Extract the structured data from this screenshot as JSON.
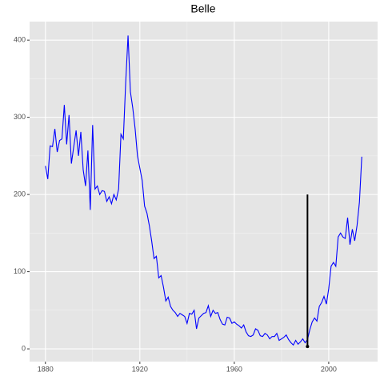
{
  "chart_data": {
    "type": "line",
    "title": "Belle",
    "x": [
      1880,
      1881,
      1882,
      1883,
      1884,
      1885,
      1886,
      1887,
      1888,
      1889,
      1890,
      1891,
      1892,
      1893,
      1894,
      1895,
      1896,
      1897,
      1898,
      1899,
      1900,
      1901,
      1902,
      1903,
      1904,
      1905,
      1906,
      1907,
      1908,
      1909,
      1910,
      1911,
      1912,
      1913,
      1914,
      1915,
      1916,
      1917,
      1918,
      1919,
      1920,
      1921,
      1922,
      1923,
      1924,
      1925,
      1926,
      1927,
      1928,
      1929,
      1930,
      1931,
      1932,
      1933,
      1934,
      1935,
      1936,
      1937,
      1938,
      1939,
      1940,
      1941,
      1942,
      1943,
      1944,
      1945,
      1946,
      1947,
      1948,
      1949,
      1950,
      1951,
      1952,
      1953,
      1954,
      1955,
      1956,
      1957,
      1958,
      1959,
      1960,
      1961,
      1962,
      1963,
      1964,
      1965,
      1966,
      1967,
      1968,
      1969,
      1970,
      1971,
      1972,
      1973,
      1974,
      1975,
      1976,
      1977,
      1978,
      1979,
      1980,
      1981,
      1982,
      1983,
      1984,
      1985,
      1986,
      1987,
      1988,
      1989,
      1990,
      1991,
      1992,
      1993,
      1994,
      1995,
      1996,
      1997,
      1998,
      1999,
      2000,
      2001,
      2002,
      2003,
      2004,
      2005,
      2006,
      2007,
      2008,
      2009,
      2010,
      2011,
      2012,
      2013,
      2014
    ],
    "series": [
      {
        "color": "#0000ff",
        "values": [
          237,
          220,
          263,
          262,
          285,
          255,
          270,
          272,
          316,
          265,
          303,
          240,
          262,
          283,
          250,
          281,
          232,
          211,
          257,
          180,
          290,
          207,
          211,
          200,
          205,
          204,
          191,
          197,
          188,
          200,
          193,
          207,
          278,
          272,
          345,
          406,
          333,
          312,
          285,
          250,
          234,
          218,
          185,
          176,
          160,
          140,
          117,
          120,
          92,
          95,
          80,
          62,
          67,
          55,
          50,
          47,
          42,
          46,
          44,
          42,
          33,
          46,
          45,
          50,
          26,
          40,
          43,
          46,
          47,
          56,
          42,
          50,
          46,
          47,
          38,
          32,
          31,
          41,
          40,
          33,
          35,
          32,
          30,
          27,
          31,
          22,
          17,
          16,
          18,
          26,
          24,
          17,
          16,
          20,
          18,
          13,
          16,
          16,
          20,
          11,
          13,
          15,
          18,
          12,
          8,
          5,
          11,
          6,
          9,
          13,
          8,
          12,
          25,
          35,
          40,
          36,
          55,
          60,
          68,
          58,
          78,
          107,
          112,
          107,
          145,
          150,
          145,
          143,
          170,
          135,
          155,
          140,
          160,
          190,
          249
        ]
      }
    ],
    "segment": {
      "x": 1991,
      "y": [
        3,
        200
      ],
      "color": "#000000"
    },
    "xlim": [
      1873.3,
      2020.7
    ],
    "ylim": [
      -16.5,
      424
    ],
    "xticks": [
      1880,
      1920,
      1960,
      2000
    ],
    "yticks": [
      0,
      100,
      200,
      300,
      400
    ],
    "x_minor_ticks": [
      1900,
      1940,
      1980
    ],
    "y_minor_ticks": [
      50,
      150,
      250,
      350
    ],
    "grid": true
  }
}
